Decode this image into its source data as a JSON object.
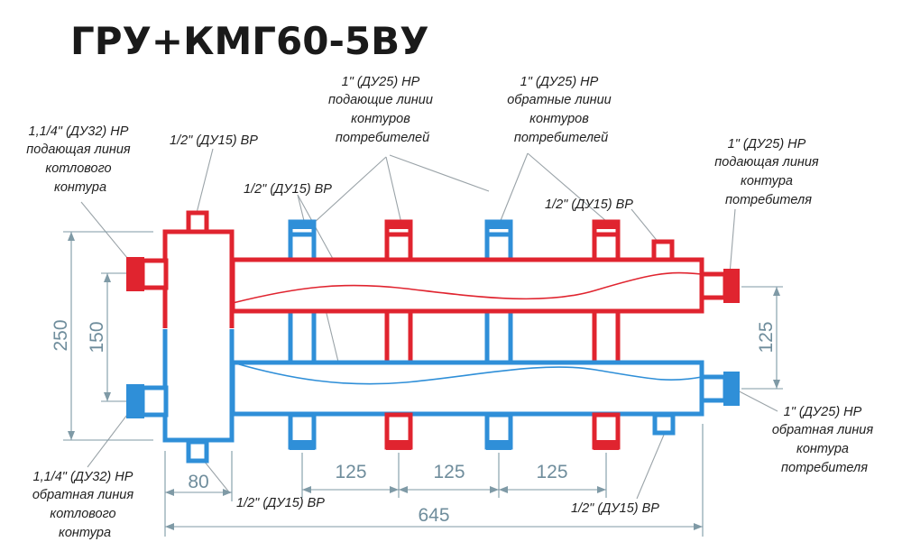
{
  "title": "ГРУ+КМГ60-5ВУ",
  "colors": {
    "supply": "#e0242f",
    "return": "#2f8fd8",
    "dimension": "#7f9aa6"
  },
  "labels": {
    "boiler_supply": [
      "1,1/4\" (ДУ32) НР",
      "подающая линия",
      "котлового",
      "контура"
    ],
    "boiler_return": [
      "1,1/4\" (ДУ32) НР",
      "обратная линия",
      "котлового",
      "контура"
    ],
    "top_left_port": "1/2\" (ДУ15) ВР",
    "middle_port": "1/2\" (ДУ15) ВР",
    "top_right_port": "1/2\" (ДУ15) ВР",
    "bottom_left_port": "1/2\" (ДУ15) ВР",
    "bottom_right_port": "1/2\" (ДУ15) ВР",
    "consumer_supply_outlets": [
      "1\" (ДУ25) НР",
      "подающие линии",
      "контуров",
      "потребителей"
    ],
    "consumer_return_outlets": [
      "1\" (ДУ25) НР",
      "обратные линии",
      "контуров",
      "потребителей"
    ],
    "consumer_supply_end": [
      "1\" (ДУ25) НР",
      "подающая линия",
      "контура",
      "потребителя"
    ],
    "consumer_return_end": [
      "1\" (ДУ25) НР",
      "обратная линия",
      "контура",
      "потребителя"
    ]
  },
  "dimensions": {
    "height_total": "250",
    "height_inner": "150",
    "height_right": "125",
    "width_separator": "80",
    "pitch_1": "125",
    "pitch_2": "125",
    "pitch_3": "125",
    "width_total": "645"
  }
}
